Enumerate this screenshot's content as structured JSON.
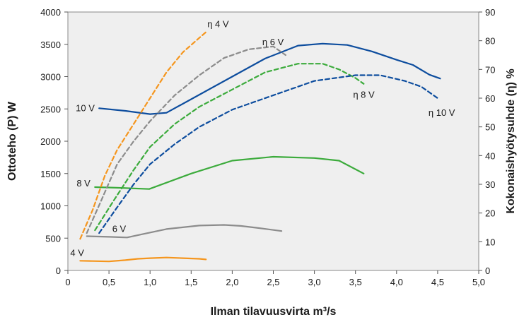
{
  "chart_data": {
    "type": "line",
    "xlabel": "Ilman tilavuusvirta m³/s",
    "ylabel": "Ottoteho (P) W",
    "y2label": "Kokonaishyötysuhde (η) %",
    "xlim": [
      0,
      5
    ],
    "ylim": [
      0,
      4000
    ],
    "y2lim": [
      0,
      90
    ],
    "x_ticks": [
      "0",
      "0,5",
      "1,0",
      "1,5",
      "2,0",
      "2,5",
      "3,0",
      "3,5",
      "4,0",
      "4,5",
      "5,0"
    ],
    "y_ticks": [
      "0",
      "500",
      "1000",
      "1500",
      "2000",
      "2500",
      "3000",
      "3500",
      "4000"
    ],
    "y2_ticks": [
      "0",
      "10",
      "20",
      "30",
      "40",
      "50",
      "60",
      "70",
      "80",
      "90"
    ],
    "grid": false,
    "background": "#efefef",
    "series": [
      {
        "name": "4 V",
        "axis": "left",
        "style": "solid",
        "color": "#f5961e",
        "x": [
          0.15,
          0.3,
          0.5,
          0.7,
          0.85,
          1.0,
          1.2,
          1.4,
          1.6,
          1.68
        ],
        "y": [
          150,
          145,
          140,
          160,
          180,
          190,
          200,
          190,
          180,
          170
        ]
      },
      {
        "name": "6 V",
        "axis": "left",
        "style": "solid",
        "color": "#8c8c8c",
        "x": [
          0.23,
          0.5,
          0.72,
          0.9,
          1.2,
          1.6,
          1.9,
          2.1,
          2.3,
          2.6
        ],
        "y": [
          530,
          520,
          510,
          560,
          640,
          695,
          705,
          690,
          660,
          610
        ]
      },
      {
        "name": "8 V",
        "axis": "left",
        "style": "solid",
        "color": "#3cab3c",
        "x": [
          0.33,
          0.6,
          0.99,
          1.5,
          2.0,
          2.5,
          3.0,
          3.3,
          3.6
        ],
        "y": [
          1290,
          1280,
          1260,
          1500,
          1700,
          1760,
          1740,
          1700,
          1500
        ]
      },
      {
        "name": "10 V",
        "axis": "left",
        "style": "solid",
        "color": "#0d4d9e",
        "x": [
          0.38,
          0.7,
          1.0,
          1.2,
          1.6,
          2.0,
          2.4,
          2.8,
          3.1,
          3.4,
          3.7,
          4.0,
          4.2,
          4.4,
          4.53
        ],
        "y": [
          2510,
          2470,
          2420,
          2440,
          2720,
          3000,
          3280,
          3480,
          3510,
          3490,
          3390,
          3260,
          3180,
          3030,
          2970
        ]
      },
      {
        "name": "η 4 V",
        "axis": "right",
        "style": "dashed",
        "color": "#f5961e",
        "x": [
          0.15,
          0.3,
          0.45,
          0.6,
          0.8,
          1.0,
          1.2,
          1.4,
          1.6,
          1.68
        ],
        "y": [
          11,
          21,
          33,
          42,
          51,
          60,
          69,
          76,
          81,
          83
        ]
      },
      {
        "name": "η 6 V",
        "axis": "right",
        "style": "dashed",
        "color": "#8c8c8c",
        "x": [
          0.23,
          0.4,
          0.6,
          0.8,
          1.0,
          1.3,
          1.6,
          1.9,
          2.2,
          2.5,
          2.65
        ],
        "y": [
          13,
          24,
          37,
          45,
          52,
          61,
          68,
          74,
          77,
          78,
          75
        ]
      },
      {
        "name": "η 8 V",
        "axis": "right",
        "style": "dashed",
        "color": "#3cab3c",
        "x": [
          0.33,
          0.55,
          0.8,
          1.0,
          1.3,
          1.6,
          2.0,
          2.4,
          2.8,
          3.1,
          3.3,
          3.5,
          3.6
        ],
        "y": [
          14,
          24,
          35,
          43,
          51,
          57,
          63,
          69,
          72,
          72,
          70,
          67,
          65
        ]
      },
      {
        "name": "η 10 V",
        "axis": "right",
        "style": "dashed",
        "color": "#0d4d9e",
        "x": [
          0.38,
          0.6,
          0.8,
          1.0,
          1.3,
          1.6,
          2.0,
          2.5,
          3.0,
          3.5,
          3.8,
          4.1,
          4.3,
          4.5
        ],
        "y": [
          13,
          22,
          30,
          37,
          44,
          50,
          56,
          61,
          66,
          68,
          68,
          66,
          64,
          60
        ]
      }
    ]
  }
}
